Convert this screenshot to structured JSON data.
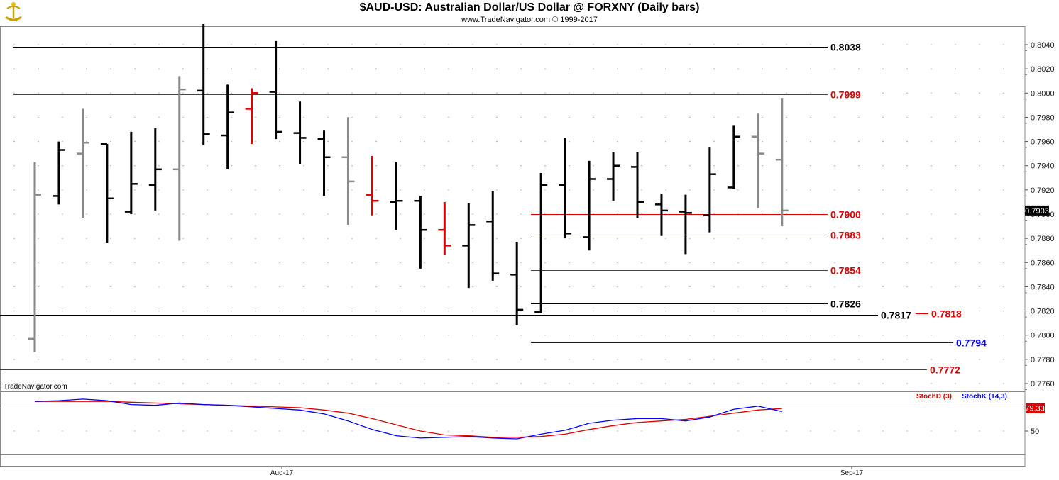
{
  "header": {
    "title": "$AUD-USD:  Australian Dollar/US Dollar @ FORXNY  (Daily bars)",
    "subtitle": "www.TradeNavigator.com © 1999-2017"
  },
  "watermark": "TradeNavigator.com",
  "colors": {
    "up": "#000000",
    "neutral": "#8a8a8a",
    "down": "#e00000",
    "blue": "#0000ff",
    "grid": "#bbbbbb"
  },
  "chart_data": {
    "type": "ohlc",
    "ylim": [
      0.775,
      0.805
    ],
    "y_ticks": [
      "0.8040",
      "0.8020",
      "0.8000",
      "0.7980",
      "0.7960",
      "0.7940",
      "0.7920",
      "0.7900",
      "0.7880",
      "0.7860",
      "0.7840",
      "0.7820",
      "0.7800",
      "0.7780",
      "0.7760"
    ],
    "x_labels": [
      "Aug-17",
      "Sep-17"
    ],
    "last_price": "0.7903",
    "bars": [
      {
        "o": 0.7797,
        "h": 0.7943,
        "l": 0.7786,
        "c": 0.7916,
        "col": "neutral"
      },
      {
        "o": 0.7915,
        "h": 0.796,
        "l": 0.7908,
        "c": 0.7953,
        "col": "up"
      },
      {
        "o": 0.795,
        "h": 0.7987,
        "l": 0.7897,
        "c": 0.7959,
        "col": "neutral"
      },
      {
        "o": 0.7958,
        "h": 0.7958,
        "l": 0.7876,
        "c": 0.7913,
        "col": "up"
      },
      {
        "o": 0.7902,
        "h": 0.7968,
        "l": 0.79,
        "c": 0.7925,
        "col": "up"
      },
      {
        "o": 0.7924,
        "h": 0.7971,
        "l": 0.7903,
        "c": 0.7937,
        "col": "up"
      },
      {
        "o": 0.7937,
        "h": 0.8014,
        "l": 0.7878,
        "c": 0.8003,
        "col": "neutral"
      },
      {
        "o": 0.8002,
        "h": 0.8057,
        "l": 0.7957,
        "c": 0.7966,
        "col": "up"
      },
      {
        "o": 0.7965,
        "h": 0.8007,
        "l": 0.7937,
        "c": 0.7984,
        "col": "up"
      },
      {
        "o": 0.7987,
        "h": 0.8004,
        "l": 0.7958,
        "c": 0.8,
        "col": "down"
      },
      {
        "o": 0.8001,
        "h": 0.8043,
        "l": 0.7962,
        "c": 0.7968,
        "col": "up"
      },
      {
        "o": 0.7967,
        "h": 0.7993,
        "l": 0.7941,
        "c": 0.7963,
        "col": "up"
      },
      {
        "o": 0.7962,
        "h": 0.7969,
        "l": 0.7915,
        "c": 0.7947,
        "col": "up"
      },
      {
        "o": 0.7947,
        "h": 0.798,
        "l": 0.7891,
        "c": 0.7927,
        "col": "neutral"
      },
      {
        "o": 0.7916,
        "h": 0.7948,
        "l": 0.7899,
        "c": 0.7911,
        "col": "down"
      },
      {
        "o": 0.791,
        "h": 0.7943,
        "l": 0.7887,
        "c": 0.7911,
        "col": "up"
      },
      {
        "o": 0.7911,
        "h": 0.7915,
        "l": 0.7855,
        "c": 0.7887,
        "col": "up"
      },
      {
        "o": 0.7887,
        "h": 0.791,
        "l": 0.7866,
        "c": 0.7874,
        "col": "down"
      },
      {
        "o": 0.7874,
        "h": 0.7909,
        "l": 0.7839,
        "c": 0.7891,
        "col": "up"
      },
      {
        "o": 0.7894,
        "h": 0.7919,
        "l": 0.7845,
        "c": 0.7851,
        "col": "up"
      },
      {
        "o": 0.785,
        "h": 0.7877,
        "l": 0.7808,
        "c": 0.7821,
        "col": "up"
      },
      {
        "o": 0.7819,
        "h": 0.7934,
        "l": 0.7818,
        "c": 0.7924,
        "col": "up"
      },
      {
        "o": 0.7924,
        "h": 0.7963,
        "l": 0.788,
        "c": 0.7884,
        "col": "up"
      },
      {
        "o": 0.7881,
        "h": 0.7944,
        "l": 0.787,
        "c": 0.7929,
        "col": "up"
      },
      {
        "o": 0.7929,
        "h": 0.7951,
        "l": 0.7911,
        "c": 0.794,
        "col": "up"
      },
      {
        "o": 0.7939,
        "h": 0.7951,
        "l": 0.7897,
        "c": 0.791,
        "col": "up"
      },
      {
        "o": 0.7908,
        "h": 0.7917,
        "l": 0.7882,
        "c": 0.7903,
        "col": "up"
      },
      {
        "o": 0.7902,
        "h": 0.7916,
        "l": 0.7867,
        "c": 0.7901,
        "col": "up"
      },
      {
        "o": 0.7899,
        "h": 0.7955,
        "l": 0.7885,
        "c": 0.7933,
        "col": "up"
      },
      {
        "o": 0.7922,
        "h": 0.7973,
        "l": 0.7921,
        "c": 0.7964,
        "col": "up"
      },
      {
        "o": 0.7964,
        "h": 0.7983,
        "l": 0.7905,
        "c": 0.795,
        "col": "neutral"
      },
      {
        "o": 0.7945,
        "h": 0.7996,
        "l": 0.789,
        "c": 0.7903,
        "col": "neutral"
      }
    ],
    "levels": [
      {
        "label": "0.8038",
        "value": 0.8038,
        "from": 19,
        "to": 1166,
        "color": "#000000",
        "label_color": "#000000"
      },
      {
        "label": "0.7999",
        "value": 0.7999,
        "from": 19,
        "to": 1166,
        "color": "#e00000",
        "label_color": "#e00000"
      },
      {
        "label": "0.7900",
        "value": 0.79,
        "from": 748,
        "to": 1166,
        "color": "#e00000",
        "label_color": "#e00000"
      },
      {
        "label": "0.7883",
        "value": 0.7883,
        "from": 748,
        "to": 1166,
        "color": "#e00000",
        "label_color": "#e00000"
      },
      {
        "label": "0.7854",
        "value": 0.7854,
        "from": 748,
        "to": 1166,
        "color": "#e00000",
        "label_color": "#e00000"
      },
      {
        "label": "0.7826",
        "value": 0.7826,
        "from": 748,
        "to": 1166,
        "color": "#000000",
        "label_color": "#000000"
      },
      {
        "label": "0.7817",
        "value": 0.7817,
        "from": 0,
        "to": 1237,
        "color": "#000000",
        "label_color": "#000000"
      },
      {
        "label": "0.7818",
        "value": 0.7818,
        "from": 1290,
        "to": 1308,
        "color": "#e00000",
        "label_color": "#e00000"
      },
      {
        "label": "0.7794",
        "value": 0.7794,
        "from": 748,
        "to": 1343,
        "color": "#0000ff",
        "label_color": "#0000ff"
      },
      {
        "label": "0.7772",
        "value": 0.7772,
        "from": 0,
        "to": 1306,
        "color": "#e00000",
        "label_color": "#e00000"
      }
    ],
    "stochastic": {
      "ylim": [
        0,
        100
      ],
      "ref_lines": [
        80,
        20
      ],
      "y_ticks": [
        "50"
      ],
      "last_value": "79.33",
      "d_name": "StochD (3)",
      "k_name": "StochK (14,3)",
      "d": [
        88,
        88,
        88,
        88,
        87,
        86,
        85,
        84,
        83,
        82,
        81,
        80,
        77,
        73,
        66,
        58,
        50,
        45,
        44,
        42,
        42,
        43,
        46,
        52,
        57,
        61,
        63,
        65,
        69,
        73,
        77,
        79
      ],
      "k": [
        88,
        89,
        91,
        89,
        84,
        83,
        86,
        84,
        83,
        81,
        79,
        77,
        72,
        63,
        52,
        44,
        41,
        42,
        43,
        41,
        40,
        46,
        51,
        60,
        64,
        66,
        66,
        63,
        68,
        78,
        82,
        75
      ]
    }
  }
}
